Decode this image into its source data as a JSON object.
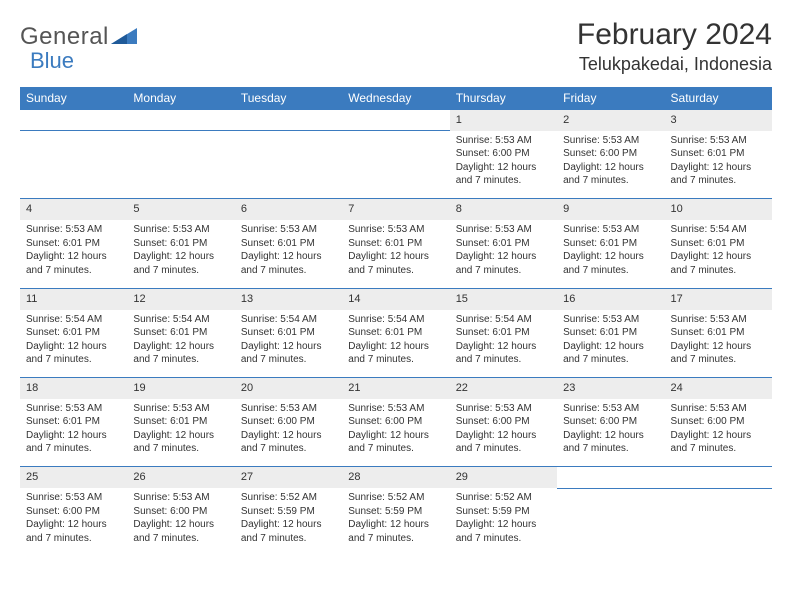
{
  "logo": {
    "text1": "General",
    "text2": "Blue"
  },
  "title": "February 2024",
  "location": "Telukpakedai, Indonesia",
  "colors": {
    "header_bg": "#3b7bbf",
    "header_text": "#ffffff",
    "daynum_bg": "#ededed",
    "border": "#3b7bbf",
    "text": "#333333",
    "background": "#ffffff"
  },
  "daysOfWeek": [
    "Sunday",
    "Monday",
    "Tuesday",
    "Wednesday",
    "Thursday",
    "Friday",
    "Saturday"
  ],
  "startOffset": 4,
  "daysInMonth": 29,
  "cells": {
    "1": {
      "sunrise": "5:53 AM",
      "sunset": "6:00 PM",
      "daylight": "12 hours and 7 minutes."
    },
    "2": {
      "sunrise": "5:53 AM",
      "sunset": "6:00 PM",
      "daylight": "12 hours and 7 minutes."
    },
    "3": {
      "sunrise": "5:53 AM",
      "sunset": "6:01 PM",
      "daylight": "12 hours and 7 minutes."
    },
    "4": {
      "sunrise": "5:53 AM",
      "sunset": "6:01 PM",
      "daylight": "12 hours and 7 minutes."
    },
    "5": {
      "sunrise": "5:53 AM",
      "sunset": "6:01 PM",
      "daylight": "12 hours and 7 minutes."
    },
    "6": {
      "sunrise": "5:53 AM",
      "sunset": "6:01 PM",
      "daylight": "12 hours and 7 minutes."
    },
    "7": {
      "sunrise": "5:53 AM",
      "sunset": "6:01 PM",
      "daylight": "12 hours and 7 minutes."
    },
    "8": {
      "sunrise": "5:53 AM",
      "sunset": "6:01 PM",
      "daylight": "12 hours and 7 minutes."
    },
    "9": {
      "sunrise": "5:53 AM",
      "sunset": "6:01 PM",
      "daylight": "12 hours and 7 minutes."
    },
    "10": {
      "sunrise": "5:54 AM",
      "sunset": "6:01 PM",
      "daylight": "12 hours and 7 minutes."
    },
    "11": {
      "sunrise": "5:54 AM",
      "sunset": "6:01 PM",
      "daylight": "12 hours and 7 minutes."
    },
    "12": {
      "sunrise": "5:54 AM",
      "sunset": "6:01 PM",
      "daylight": "12 hours and 7 minutes."
    },
    "13": {
      "sunrise": "5:54 AM",
      "sunset": "6:01 PM",
      "daylight": "12 hours and 7 minutes."
    },
    "14": {
      "sunrise": "5:54 AM",
      "sunset": "6:01 PM",
      "daylight": "12 hours and 7 minutes."
    },
    "15": {
      "sunrise": "5:54 AM",
      "sunset": "6:01 PM",
      "daylight": "12 hours and 7 minutes."
    },
    "16": {
      "sunrise": "5:53 AM",
      "sunset": "6:01 PM",
      "daylight": "12 hours and 7 minutes."
    },
    "17": {
      "sunrise": "5:53 AM",
      "sunset": "6:01 PM",
      "daylight": "12 hours and 7 minutes."
    },
    "18": {
      "sunrise": "5:53 AM",
      "sunset": "6:01 PM",
      "daylight": "12 hours and 7 minutes."
    },
    "19": {
      "sunrise": "5:53 AM",
      "sunset": "6:01 PM",
      "daylight": "12 hours and 7 minutes."
    },
    "20": {
      "sunrise": "5:53 AM",
      "sunset": "6:00 PM",
      "daylight": "12 hours and 7 minutes."
    },
    "21": {
      "sunrise": "5:53 AM",
      "sunset": "6:00 PM",
      "daylight": "12 hours and 7 minutes."
    },
    "22": {
      "sunrise": "5:53 AM",
      "sunset": "6:00 PM",
      "daylight": "12 hours and 7 minutes."
    },
    "23": {
      "sunrise": "5:53 AM",
      "sunset": "6:00 PM",
      "daylight": "12 hours and 7 minutes."
    },
    "24": {
      "sunrise": "5:53 AM",
      "sunset": "6:00 PM",
      "daylight": "12 hours and 7 minutes."
    },
    "25": {
      "sunrise": "5:53 AM",
      "sunset": "6:00 PM",
      "daylight": "12 hours and 7 minutes."
    },
    "26": {
      "sunrise": "5:53 AM",
      "sunset": "6:00 PM",
      "daylight": "12 hours and 7 minutes."
    },
    "27": {
      "sunrise": "5:52 AM",
      "sunset": "5:59 PM",
      "daylight": "12 hours and 7 minutes."
    },
    "28": {
      "sunrise": "5:52 AM",
      "sunset": "5:59 PM",
      "daylight": "12 hours and 7 minutes."
    },
    "29": {
      "sunrise": "5:52 AM",
      "sunset": "5:59 PM",
      "daylight": "12 hours and 7 minutes."
    }
  },
  "labels": {
    "sunrise": "Sunrise:",
    "sunset": "Sunset:",
    "daylight": "Daylight:"
  }
}
